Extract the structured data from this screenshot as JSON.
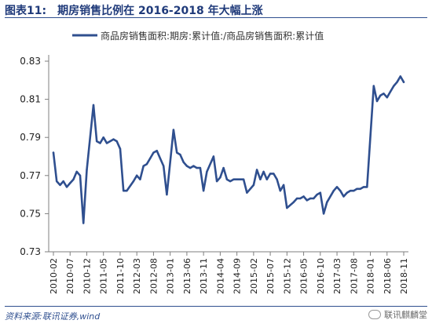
{
  "header": {
    "fig_label": "图表11:",
    "title": "期房销售比例在 2016-2018 年大幅上涨"
  },
  "footer": {
    "source": "资料来源:联讯证券,wind",
    "watermark": "联讯麒麟堂"
  },
  "colors": {
    "line": "#2f4f8f",
    "axis": "#7f7f7f"
  },
  "chart_data": {
    "type": "line",
    "title": "期房销售比例在 2016-2018 年大幅上涨",
    "xlabel": "",
    "ylabel": "",
    "ylim": [
      0.73,
      0.83
    ],
    "yticks": [
      "0.73",
      "0.75",
      "0.77",
      "0.79",
      "0.81",
      "0.83"
    ],
    "xticks": [
      "2010-02",
      "2010-07",
      "2010-12",
      "2011-05",
      "2011-10",
      "2012-03",
      "2012-08",
      "2013-01",
      "2013-06",
      "2013-11",
      "2014-04",
      "2014-09",
      "2015-02",
      "2015-07",
      "2015-12",
      "2016-05",
      "2016-10",
      "2017-03",
      "2017-08",
      "2018-01",
      "2018-06",
      "2018-11"
    ],
    "legend": "top-left",
    "grid": false,
    "series": [
      {
        "name": "商品房销售面积:期房:累计值:/商品房销售面积:累计值",
        "x": [
          "2010-02",
          "2010-03",
          "2010-04",
          "2010-05",
          "2010-06",
          "2010-07",
          "2010-08",
          "2010-09",
          "2010-10",
          "2010-11",
          "2010-12",
          "2011-02",
          "2011-03",
          "2011-04",
          "2011-05",
          "2011-06",
          "2011-07",
          "2011-08",
          "2011-09",
          "2011-10",
          "2011-11",
          "2011-12",
          "2012-02",
          "2012-03",
          "2012-04",
          "2012-05",
          "2012-06",
          "2012-07",
          "2012-08",
          "2012-09",
          "2012-10",
          "2012-11",
          "2012-12",
          "2013-02",
          "2013-03",
          "2013-04",
          "2013-05",
          "2013-06",
          "2013-07",
          "2013-08",
          "2013-09",
          "2013-10",
          "2013-11",
          "2013-12",
          "2014-02",
          "2014-03",
          "2014-04",
          "2014-05",
          "2014-06",
          "2014-07",
          "2014-08",
          "2014-09",
          "2014-10",
          "2014-11",
          "2014-12",
          "2015-02",
          "2015-03",
          "2015-04",
          "2015-05",
          "2015-06",
          "2015-07",
          "2015-08",
          "2015-09",
          "2015-10",
          "2015-11",
          "2015-12",
          "2016-02",
          "2016-03",
          "2016-04",
          "2016-05",
          "2016-06",
          "2016-07",
          "2016-08",
          "2016-09",
          "2016-10",
          "2016-11",
          "2016-12",
          "2017-02",
          "2017-03",
          "2017-04",
          "2017-05",
          "2017-06",
          "2017-07",
          "2017-08",
          "2017-09",
          "2017-10",
          "2017-11",
          "2017-12",
          "2018-02",
          "2018-03",
          "2018-04",
          "2018-05",
          "2018-06",
          "2018-07",
          "2018-08",
          "2018-09",
          "2018-10",
          "2018-11"
        ],
        "values": [
          0.782,
          0.767,
          0.765,
          0.767,
          0.764,
          0.766,
          0.768,
          0.772,
          0.77,
          0.745,
          0.773,
          0.807,
          0.788,
          0.787,
          0.79,
          0.787,
          0.788,
          0.789,
          0.788,
          0.784,
          0.762,
          0.762,
          0.767,
          0.77,
          0.768,
          0.775,
          0.776,
          0.779,
          0.782,
          0.783,
          0.779,
          0.775,
          0.76,
          0.794,
          0.782,
          0.781,
          0.777,
          0.775,
          0.774,
          0.775,
          0.774,
          0.774,
          0.762,
          0.772,
          0.78,
          0.767,
          0.769,
          0.774,
          0.768,
          0.767,
          0.768,
          0.768,
          0.768,
          0.768,
          0.761,
          0.765,
          0.773,
          0.768,
          0.772,
          0.768,
          0.771,
          0.771,
          0.768,
          0.762,
          0.765,
          0.753,
          0.756,
          0.758,
          0.758,
          0.759,
          0.757,
          0.758,
          0.758,
          0.76,
          0.761,
          0.75,
          0.756,
          0.762,
          0.764,
          0.762,
          0.759,
          0.761,
          0.762,
          0.762,
          0.763,
          0.763,
          0.764,
          0.764,
          0.817,
          0.809,
          0.812,
          0.813,
          0.811,
          0.814,
          0.817,
          0.819,
          0.822,
          0.819
        ]
      }
    ]
  }
}
